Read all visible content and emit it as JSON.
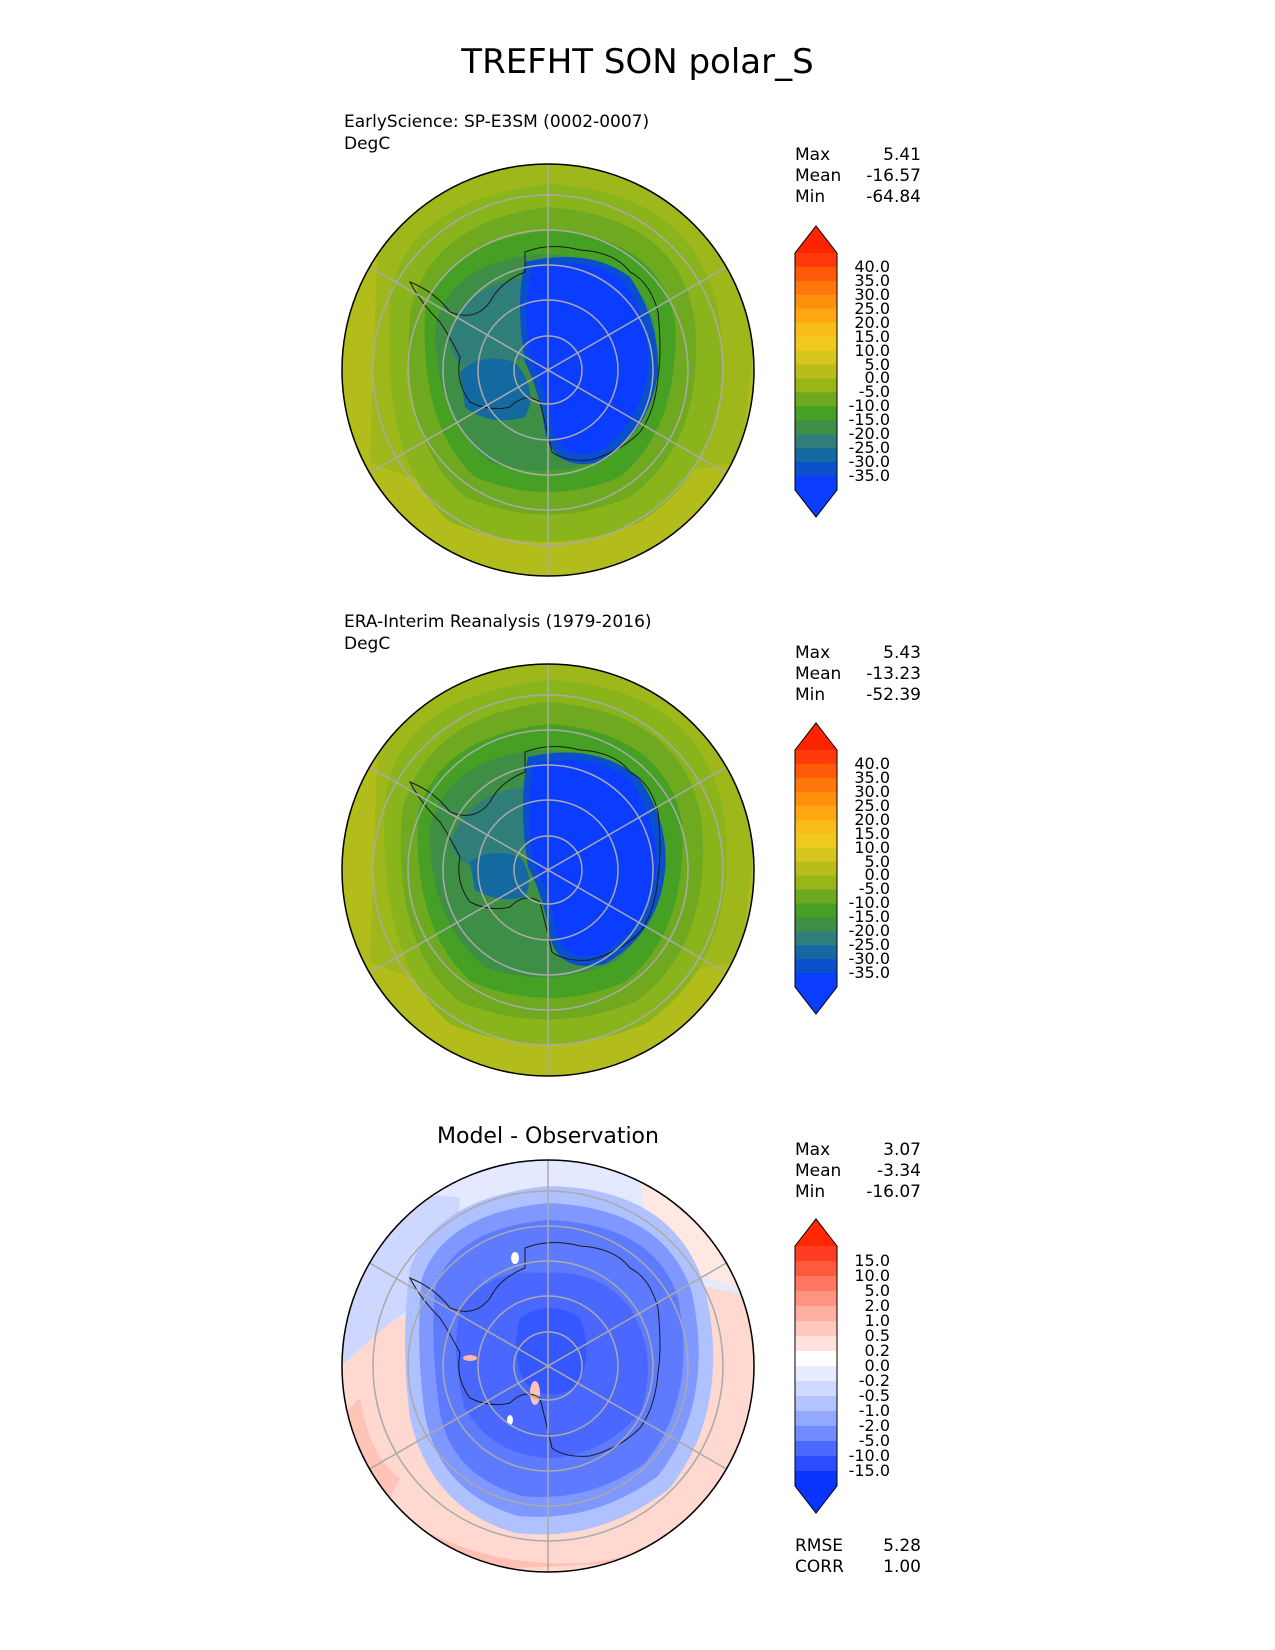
{
  "figure": {
    "title": "TREFHT SON polar_S"
  },
  "panels": [
    {
      "id": "model",
      "title": "EarlyScience: SP-E3SM (0002-0007)",
      "units": "DegC",
      "stats": [
        {
          "label": "Max",
          "value": "5.41"
        },
        {
          "label": "Mean",
          "value": "-16.57"
        },
        {
          "label": "Min",
          "value": "-64.84"
        }
      ],
      "colorbar": {
        "ticks": [
          "40.0",
          "35.0",
          "30.0",
          "25.0",
          "20.0",
          "15.0",
          "10.0",
          "5.0",
          "0.0",
          "-5.0",
          "-10.0",
          "-15.0",
          "-20.0",
          "-25.0",
          "-30.0",
          "-35.0"
        ],
        "colors": [
          "#ff3a0a",
          "#ff5a0a",
          "#ff760a",
          "#ff900c",
          "#ffa612",
          "#f9bb18",
          "#f0c81e",
          "#d8c51e",
          "#b8bd1c",
          "#98b61a",
          "#6ea920",
          "#46a024",
          "#3e8e46",
          "#2f7e7a",
          "#146aa0",
          "#0a4fcc",
          "#0a3dff"
        ],
        "extend_top_color": "#ff2400",
        "extend_bottom_color": "#0a3dff"
      }
    },
    {
      "id": "obs",
      "title": "ERA-Interim Reanalysis (1979-2016)",
      "units": "DegC",
      "stats": [
        {
          "label": "Max",
          "value": "5.43"
        },
        {
          "label": "Mean",
          "value": "-13.23"
        },
        {
          "label": "Min",
          "value": "-52.39"
        }
      ],
      "colorbar": {
        "ticks": [
          "40.0",
          "35.0",
          "30.0",
          "25.0",
          "20.0",
          "15.0",
          "10.0",
          "5.0",
          "0.0",
          "-5.0",
          "-10.0",
          "-15.0",
          "-20.0",
          "-25.0",
          "-30.0",
          "-35.0"
        ],
        "colors": [
          "#ff3a0a",
          "#ff5a0a",
          "#ff760a",
          "#ff900c",
          "#ffa612",
          "#f9bb18",
          "#f0c81e",
          "#d8c51e",
          "#b8bd1c",
          "#98b61a",
          "#6ea920",
          "#46a024",
          "#3e8e46",
          "#2f7e7a",
          "#146aa0",
          "#0a4fcc",
          "#0a3dff"
        ],
        "extend_top_color": "#ff2400",
        "extend_bottom_color": "#0a3dff"
      }
    },
    {
      "id": "diff",
      "title": "Model - Observation",
      "stats": [
        {
          "label": "Max",
          "value": "3.07"
        },
        {
          "label": "Mean",
          "value": "-3.34"
        },
        {
          "label": "Min",
          "value": "-16.07"
        }
      ],
      "extra_stats": [
        {
          "label": "RMSE",
          "value": "5.28"
        },
        {
          "label": "CORR",
          "value": "1.00"
        }
      ],
      "colorbar": {
        "ticks": [
          "15.0",
          "10.0",
          "5.0",
          "2.0",
          "1.0",
          "0.5",
          "0.2",
          "0.0",
          "-0.2",
          "-0.5",
          "-1.0",
          "-2.0",
          "-5.0",
          "-10.0",
          "-15.0"
        ],
        "colors": [
          "#ff3d24",
          "#ff5a3e",
          "#ff7760",
          "#ff9480",
          "#ffb0a2",
          "#ffc9c0",
          "#ffe2dc",
          "#ffffff",
          "#e8ecff",
          "#d0d9ff",
          "#b4c4ff",
          "#93a9ff",
          "#708cff",
          "#4c6aff",
          "#2a4dff",
          "#0a34ff"
        ],
        "extend_top_color": "#ff2800",
        "extend_bottom_color": "#0a34ff"
      }
    }
  ]
}
